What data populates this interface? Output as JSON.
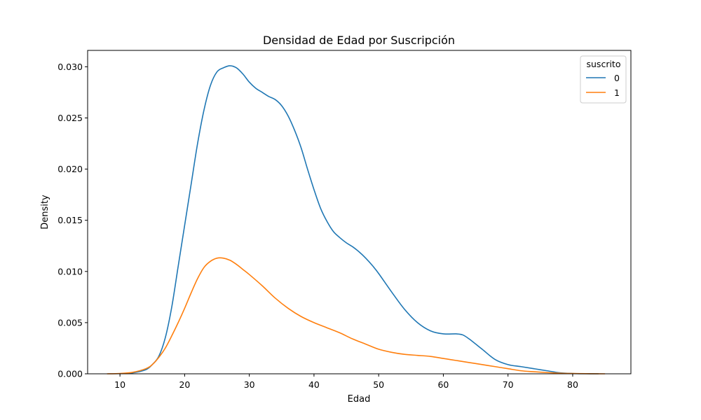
{
  "chart_data": {
    "type": "line",
    "title": "Densidad de Edad por Suscripción",
    "xlabel": "Edad",
    "ylabel": "Density",
    "xlim": [
      5,
      89
    ],
    "ylim": [
      0,
      0.0316
    ],
    "xticks": [
      10,
      20,
      30,
      40,
      50,
      60,
      70,
      80
    ],
    "yticks": [
      0.0,
      0.005,
      0.01,
      0.015,
      0.02,
      0.025,
      0.03
    ],
    "ytick_labels": [
      "0.000",
      "0.005",
      "0.010",
      "0.015",
      "0.020",
      "0.025",
      "0.030"
    ],
    "grid": false,
    "legend": {
      "title": "suscrito",
      "placement": "top-right"
    },
    "series": [
      {
        "name": "0",
        "color": "#1f77b4",
        "x": [
          10,
          12,
          14,
          15,
          16,
          17,
          18,
          19,
          20,
          21,
          22,
          23,
          24,
          25,
          26,
          27,
          28,
          29,
          30,
          31,
          32,
          33,
          34,
          35,
          36,
          37,
          38,
          39,
          40,
          41,
          42,
          43,
          44,
          45,
          46,
          47,
          48,
          49,
          50,
          52,
          54,
          56,
          58,
          60,
          62,
          63,
          64,
          66,
          68,
          70,
          72,
          74,
          76,
          78,
          80,
          82,
          84
        ],
        "y": [
          2e-05,
          0.0001,
          0.0004,
          0.0009,
          0.0017,
          0.0035,
          0.0065,
          0.0105,
          0.0145,
          0.0185,
          0.0225,
          0.0258,
          0.0282,
          0.0295,
          0.0299,
          0.0301,
          0.0299,
          0.0293,
          0.0285,
          0.0279,
          0.0275,
          0.0271,
          0.0268,
          0.0262,
          0.0252,
          0.0238,
          0.0221,
          0.02,
          0.018,
          0.0162,
          0.0149,
          0.0139,
          0.0133,
          0.0128,
          0.0124,
          0.0119,
          0.0113,
          0.0106,
          0.0098,
          0.008,
          0.0063,
          0.005,
          0.0042,
          0.0039,
          0.0039,
          0.0038,
          0.0034,
          0.0024,
          0.0014,
          0.0009,
          0.0007,
          0.0005,
          0.0003,
          0.0001,
          3e-05,
          1e-05,
          0.0
        ]
      },
      {
        "name": "1",
        "color": "#ff7f0e",
        "x": [
          8,
          10,
          12,
          14,
          15,
          16,
          17,
          18,
          19,
          20,
          21,
          22,
          23,
          24,
          25,
          26,
          27,
          28,
          29,
          30,
          32,
          34,
          36,
          38,
          40,
          42,
          44,
          46,
          48,
          50,
          52,
          54,
          56,
          58,
          60,
          62,
          64,
          66,
          68,
          70,
          72,
          74,
          76,
          78,
          80,
          82,
          85
        ],
        "y": [
          0.0,
          3e-05,
          0.00015,
          0.0005,
          0.0009,
          0.0016,
          0.0025,
          0.0037,
          0.005,
          0.0064,
          0.0079,
          0.0093,
          0.0104,
          0.011,
          0.0113,
          0.0113,
          0.0111,
          0.0107,
          0.0102,
          0.0097,
          0.0086,
          0.0074,
          0.0064,
          0.0056,
          0.005,
          0.0045,
          0.004,
          0.0034,
          0.0029,
          0.0024,
          0.0021,
          0.0019,
          0.0018,
          0.0017,
          0.0015,
          0.0013,
          0.0011,
          0.0009,
          0.0007,
          0.0005,
          0.0003,
          0.0002,
          0.00012,
          6e-05,
          3e-05,
          1e-05,
          0.0
        ]
      }
    ]
  }
}
